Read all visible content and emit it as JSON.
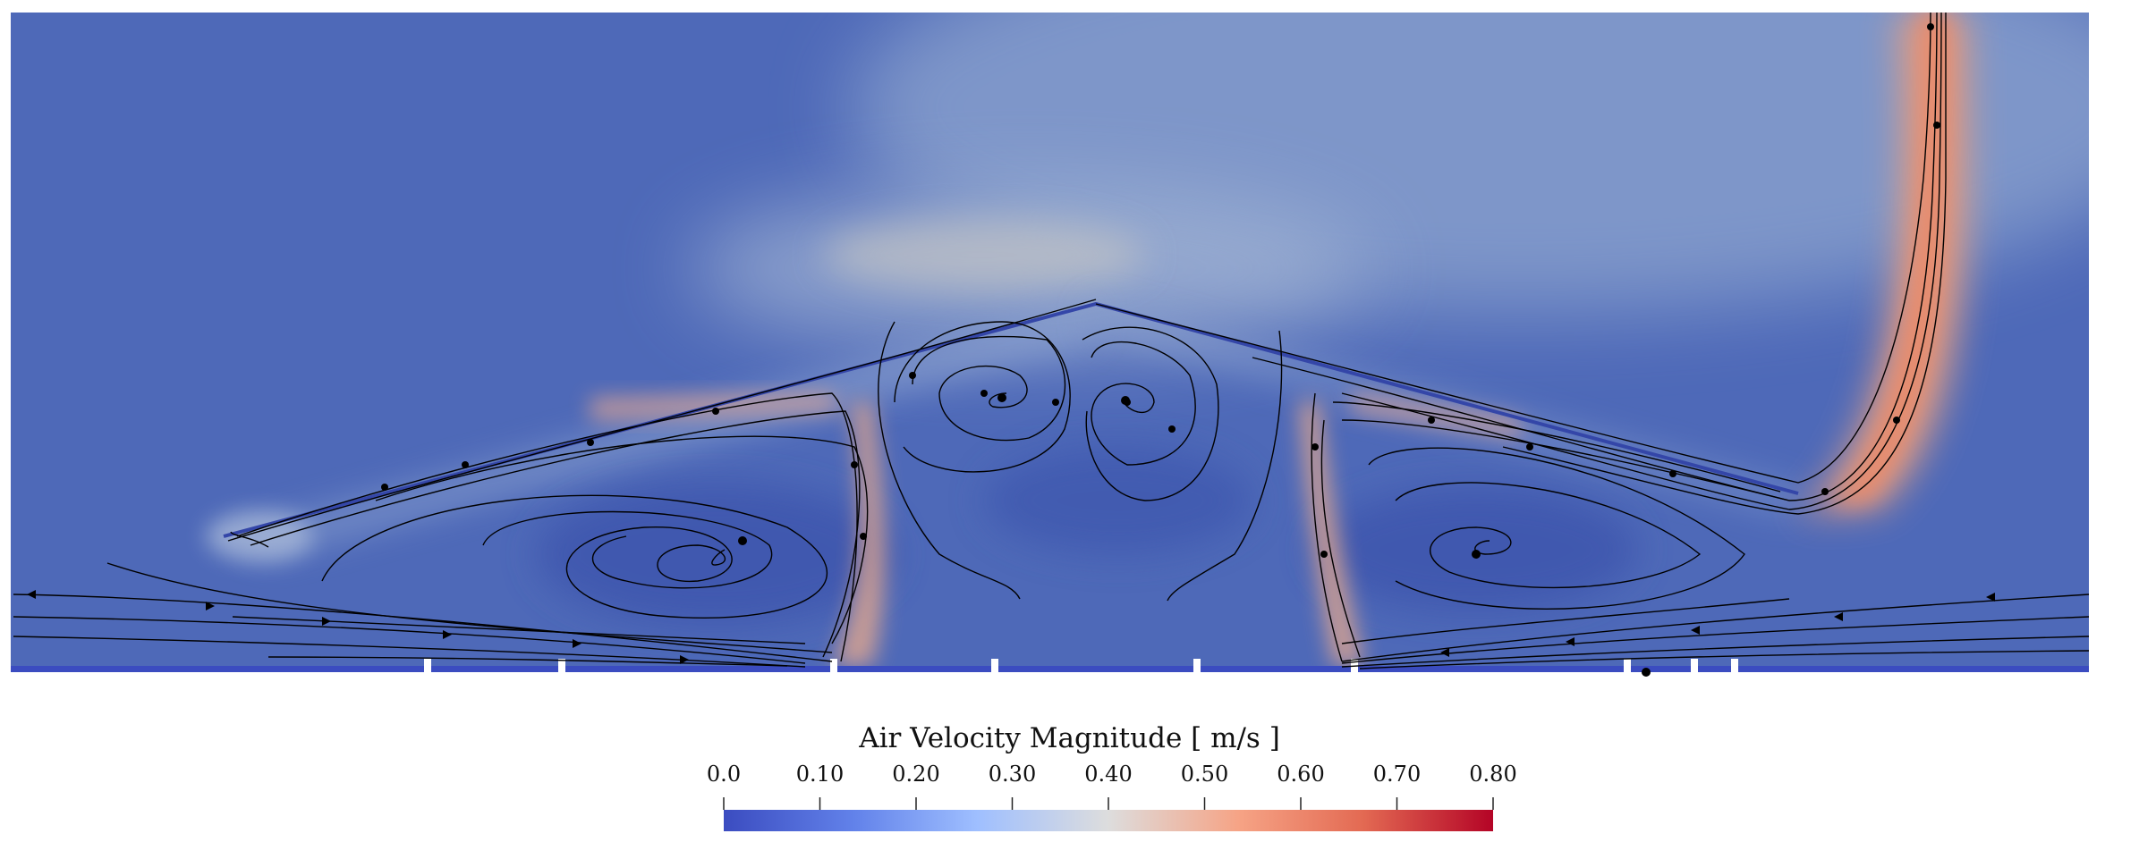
{
  "colorbar": {
    "title": "Air Velocity Magnitude [ m/s ]",
    "range": [
      0.0,
      0.8
    ],
    "colormap": "Cool to Warm",
    "colors": [
      "#3b4cc0",
      "#7b9ff9",
      "#c0d4f5",
      "#dddddd",
      "#f2cbb7",
      "#ee8468",
      "#b40426"
    ],
    "ticks": [
      {
        "value": 0.0,
        "label": "0.0"
      },
      {
        "value": 0.1,
        "label": "0.10"
      },
      {
        "value": 0.2,
        "label": "0.20"
      },
      {
        "value": 0.3,
        "label": "0.30"
      },
      {
        "value": 0.4,
        "label": "0.40"
      },
      {
        "value": 0.5,
        "label": "0.50"
      },
      {
        "value": 0.6,
        "label": "0.60"
      },
      {
        "value": 0.7,
        "label": "0.70"
      },
      {
        "value": 0.8,
        "label": "0.80"
      }
    ]
  },
  "field": {
    "background_color": "#4f6cba",
    "streamline_color": "#000000"
  }
}
